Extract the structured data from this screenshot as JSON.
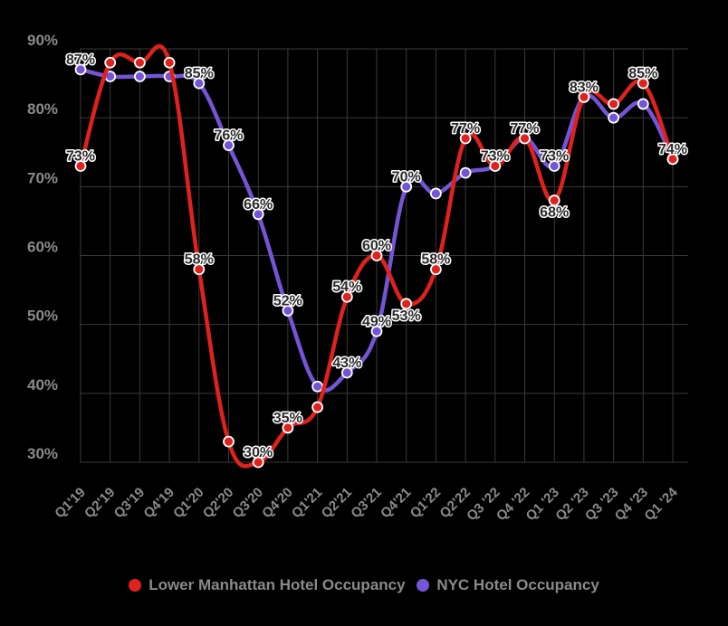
{
  "chart_data": {
    "type": "line",
    "categories": [
      "Q1'19",
      "Q2'19",
      "Q3'19",
      "Q4'19",
      "Q1'20",
      "Q2'20",
      "Q3'20",
      "Q4'20",
      "Q1'21",
      "Q2'21",
      "Q3'21",
      "Q4'21",
      "Q1'22",
      "Q2'22",
      "Q3 '22",
      "Q4 '22",
      "Q1 '23",
      "Q2 '23",
      "Q3 '23",
      "Q4 '23",
      "Q1 '24"
    ],
    "ylim": [
      25,
      90
    ],
    "yticks": [
      {
        "value": 30,
        "label": "30%"
      },
      {
        "value": 40,
        "label": "40%"
      },
      {
        "value": 50,
        "label": "50%"
      },
      {
        "value": 60,
        "label": "60%"
      },
      {
        "value": 70,
        "label": "70%"
      },
      {
        "value": 80,
        "label": "80%"
      },
      {
        "value": 90,
        "label": "90%"
      }
    ],
    "grid": true,
    "legend_position": "bottom",
    "series": [
      {
        "name": "Lower Manhattan Hotel Occupancy",
        "color": "#e0211d",
        "values": [
          73,
          88,
          88,
          88,
          58,
          33,
          30,
          35,
          38,
          54,
          60,
          53,
          58,
          77,
          73,
          77,
          68,
          83,
          82,
          85,
          74
        ]
      },
      {
        "name": "NYC Hotel Occupancy",
        "color": "#7455d6",
        "values": [
          87,
          86,
          86,
          86,
          85,
          76,
          66,
          52,
          41,
          43,
          49,
          70,
          69,
          72,
          73,
          77,
          73,
          83,
          80,
          82,
          74
        ]
      }
    ],
    "data_labels": [
      {
        "x_index": 0,
        "value": 87,
        "label": "87%",
        "dx": 0,
        "dy": -6
      },
      {
        "x_index": 0,
        "value": 73,
        "label": "73%",
        "dx": 0,
        "dy": -6
      },
      {
        "x_index": 4,
        "value": 85,
        "label": "85%",
        "dx": 0,
        "dy": -6
      },
      {
        "x_index": 4,
        "value": 58,
        "label": "58%",
        "dx": 0,
        "dy": -6
      },
      {
        "x_index": 5,
        "value": 76,
        "label": "76%",
        "dx": 0,
        "dy": -6
      },
      {
        "x_index": 6,
        "value": 66,
        "label": "66%",
        "dx": 0,
        "dy": -6
      },
      {
        "x_index": 6,
        "value": 30,
        "label": "30%",
        "dx": 0,
        "dy": -6
      },
      {
        "x_index": 7,
        "value": 52,
        "label": "52%",
        "dx": 0,
        "dy": -6
      },
      {
        "x_index": 7,
        "value": 35,
        "label": "35%",
        "dx": 0,
        "dy": -6
      },
      {
        "x_index": 9,
        "value": 54,
        "label": "54%",
        "dx": 0,
        "dy": -6
      },
      {
        "x_index": 9,
        "value": 43,
        "label": "43%",
        "dx": 0,
        "dy": -6
      },
      {
        "x_index": 10,
        "value": 60,
        "label": "60%",
        "dx": 0,
        "dy": -6
      },
      {
        "x_index": 10,
        "value": 49,
        "label": "49%",
        "dx": 0,
        "dy": -6
      },
      {
        "x_index": 11,
        "value": 70,
        "label": "70%",
        "dx": 0,
        "dy": -6
      },
      {
        "x_index": 11,
        "value": 53,
        "label": "53%",
        "dx": 0,
        "dy": 6
      },
      {
        "x_index": 12,
        "value": 58,
        "label": "58%",
        "dx": 0,
        "dy": -6
      },
      {
        "x_index": 13,
        "value": 77,
        "label": "77%",
        "dx": 0,
        "dy": -6
      },
      {
        "x_index": 14,
        "value": 73,
        "label": "73%",
        "dx": 0,
        "dy": -6
      },
      {
        "x_index": 15,
        "value": 77,
        "label": "77%",
        "dx": 0,
        "dy": -6
      },
      {
        "x_index": 16,
        "value": 73,
        "label": "73%",
        "dx": 0,
        "dy": -6
      },
      {
        "x_index": 16,
        "value": 68,
        "label": "68%",
        "dx": 0,
        "dy": 6
      },
      {
        "x_index": 17,
        "value": 83,
        "label": "83%",
        "dx": 0,
        "dy": -6
      },
      {
        "x_index": 19,
        "value": 85,
        "label": "85%",
        "dx": 0,
        "dy": -6
      },
      {
        "x_index": 20,
        "value": 74,
        "label": "74%",
        "dx": 0,
        "dy": -6
      }
    ]
  }
}
